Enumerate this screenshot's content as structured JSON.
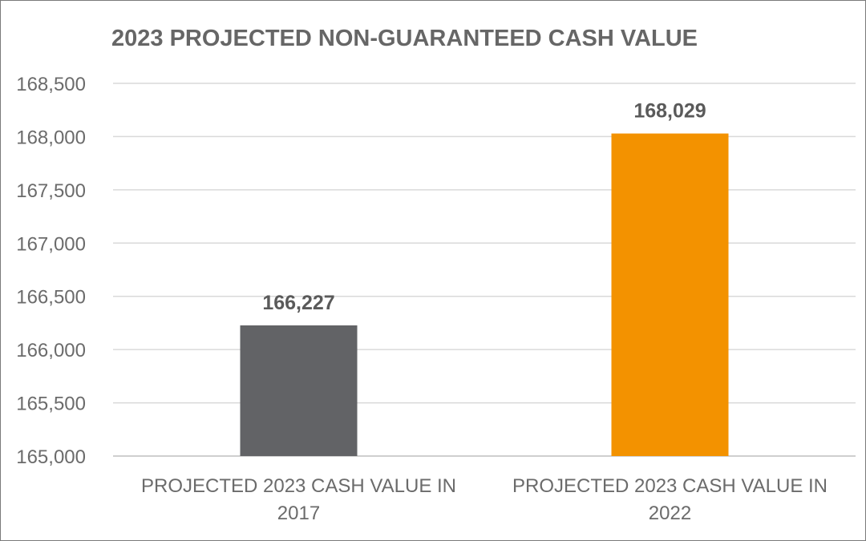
{
  "chart_data": {
    "type": "bar",
    "title": "2023 PROJECTED NON-GUARANTEED CASH VALUE",
    "categories": [
      [
        "PROJECTED 2023 CASH VALUE IN",
        "2017"
      ],
      [
        "PROJECTED 2023 CASH VALUE IN",
        "2022"
      ]
    ],
    "values": [
      166227,
      168029
    ],
    "data_labels": [
      "166,227",
      "168,029"
    ],
    "bar_colors": [
      "#626366",
      "#f39200"
    ],
    "ylim": [
      165000,
      168500
    ],
    "yticks": [
      165000,
      165500,
      166000,
      166500,
      167000,
      167500,
      168000,
      168500
    ],
    "ytick_labels": [
      "165,000",
      "165,500",
      "166,000",
      "166,500",
      "167,000",
      "167,500",
      "168,000",
      "168,500"
    ],
    "grid": true,
    "legend": "none"
  }
}
